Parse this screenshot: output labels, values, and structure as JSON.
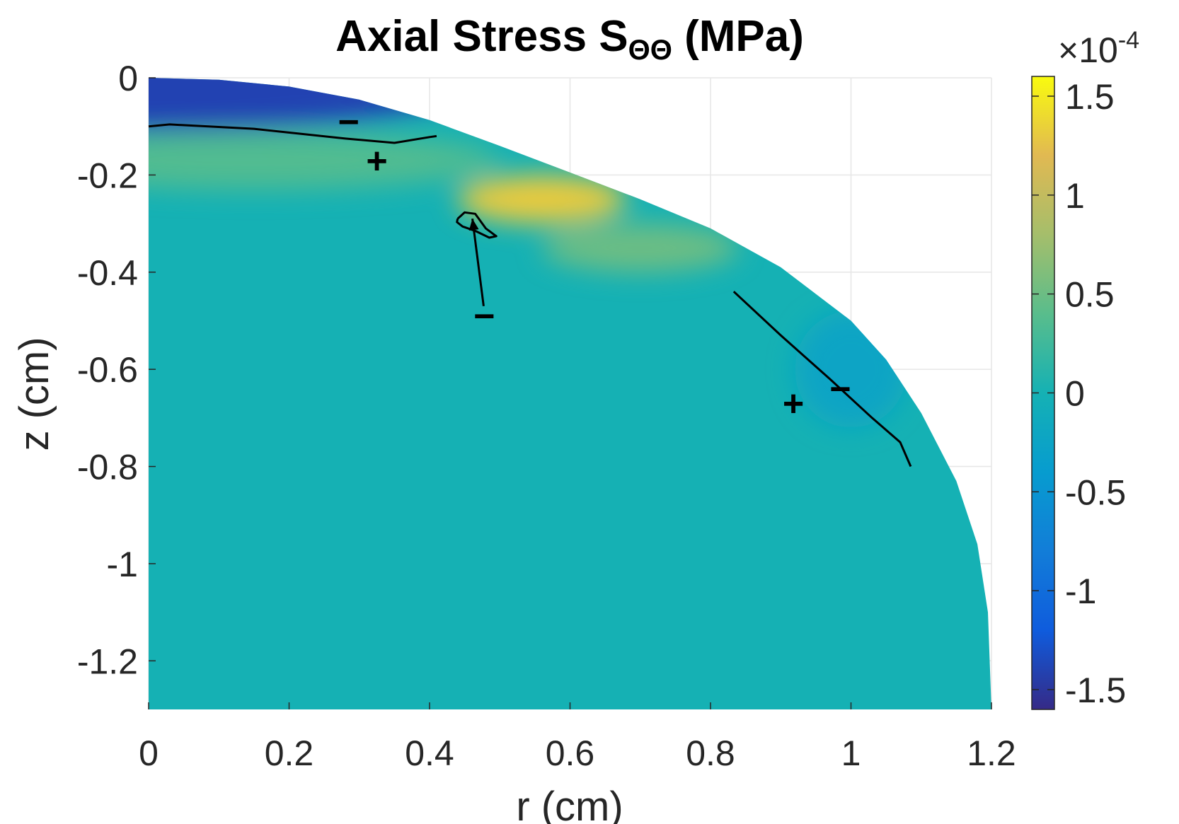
{
  "chart_data": {
    "type": "heatmap",
    "title": "Axial  Stress  S",
    "title_subscript": "ΘΘ",
    "title_suffix": "  (MPa)",
    "xlabel": "r (cm)",
    "ylabel": "z (cm)",
    "xlim": [
      0,
      1.2
    ],
    "ylim": [
      -1.3,
      0
    ],
    "x_ticks": [
      0,
      0.2,
      0.4,
      0.6,
      0.8,
      1,
      1.2
    ],
    "x_tick_labels": [
      "0",
      "0.2",
      "0.4",
      "0.6",
      "0.8",
      "1",
      "1.2"
    ],
    "y_ticks": [
      0,
      -0.2,
      -0.4,
      -0.6,
      -0.8,
      -1,
      -1.2
    ],
    "y_tick_labels": [
      "0",
      "-0.2",
      "-0.4",
      "-0.6",
      "-0.8",
      "-1",
      "-1.2"
    ],
    "grid": true,
    "colormap": "parula",
    "colorbar": {
      "multiplier_label": "×10",
      "multiplier_exponent": "-4",
      "limits": [
        -1.6,
        1.6
      ],
      "ticks": [
        1.5,
        1,
        0.5,
        0,
        -0.5,
        -1,
        -1.5
      ],
      "tick_labels": [
        "1.5",
        "1",
        "0.5",
        "0",
        "-0.5",
        "-1",
        "-1.5"
      ]
    },
    "domain_boundary": [
      [
        0,
        0
      ],
      [
        0.1,
        -0.004
      ],
      [
        0.2,
        -0.018
      ],
      [
        0.3,
        -0.045
      ],
      [
        0.4,
        -0.087
      ],
      [
        0.5,
        -0.14
      ],
      [
        0.6,
        -0.195
      ],
      [
        0.7,
        -0.25
      ],
      [
        0.8,
        -0.31
      ],
      [
        0.9,
        -0.39
      ],
      [
        1.0,
        -0.5
      ],
      [
        1.05,
        -0.58
      ],
      [
        1.1,
        -0.69
      ],
      [
        1.15,
        -0.83
      ],
      [
        1.18,
        -0.96
      ],
      [
        1.195,
        -1.1
      ],
      [
        1.2,
        -1.3
      ]
    ],
    "background_value": 0,
    "stress_features": [
      {
        "r": 0.0,
        "z": -0.02,
        "rx": 0.45,
        "rz": 0.09,
        "value": -1.4
      },
      {
        "r": 0.15,
        "z": -0.17,
        "rx": 0.35,
        "rz": 0.06,
        "value": 0.35
      },
      {
        "r": 0.56,
        "z": -0.25,
        "rx": 0.12,
        "rz": 0.05,
        "value": 1.3
      },
      {
        "r": 0.7,
        "z": -0.35,
        "rx": 0.14,
        "rz": 0.05,
        "value": 0.5
      },
      {
        "r": 1.0,
        "z": -0.6,
        "rx": 0.08,
        "rz": 0.12,
        "value": -0.25
      }
    ],
    "zero_contours": [
      [
        [
          0.0,
          -0.1
        ],
        [
          0.03,
          -0.096
        ],
        [
          0.15,
          -0.105
        ],
        [
          0.28,
          -0.125
        ],
        [
          0.35,
          -0.134
        ],
        [
          0.4,
          -0.122
        ],
        [
          0.41,
          -0.12
        ]
      ],
      [
        [
          0.44,
          -0.29
        ],
        [
          0.45,
          -0.277
        ],
        [
          0.465,
          -0.28
        ],
        [
          0.48,
          -0.31
        ],
        [
          0.495,
          -0.326
        ],
        [
          0.485,
          -0.329
        ],
        [
          0.465,
          -0.315
        ],
        [
          0.447,
          -0.306
        ],
        [
          0.439,
          -0.297
        ],
        [
          0.44,
          -0.29
        ]
      ],
      [
        [
          0.833,
          -0.44
        ],
        [
          0.9,
          -0.53
        ],
        [
          0.97,
          -0.62
        ],
        [
          1.03,
          -0.7
        ],
        [
          1.07,
          -0.75
        ],
        [
          1.085,
          -0.8
        ]
      ]
    ],
    "sign_labels": [
      {
        "text": "−",
        "r": 0.285,
        "z": -0.09
      },
      {
        "text": "+",
        "r": 0.325,
        "z": -0.17
      },
      {
        "text": "−",
        "r": 0.478,
        "z": -0.49
      },
      {
        "text": "+",
        "r": 0.918,
        "z": -0.67
      },
      {
        "text": "−",
        "r": 0.985,
        "z": -0.64
      }
    ],
    "annotation_arrow": {
      "from": [
        0.477,
        -0.47
      ],
      "to": [
        0.461,
        -0.29
      ]
    }
  }
}
